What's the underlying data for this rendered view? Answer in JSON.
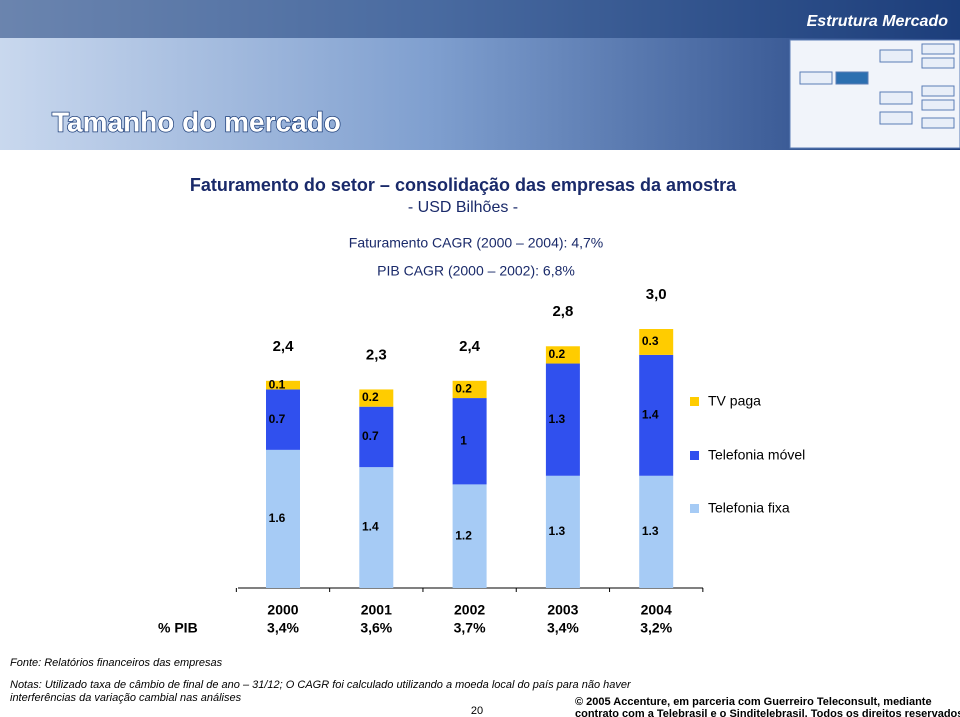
{
  "header": {
    "section": "Estrutura Mercado",
    "title": "Tamanho do mercado"
  },
  "chart_data": {
    "type": "stacked_bar",
    "title": "Faturamento do setor – consolidação das empresas da amostra",
    "subtitle": "- USD Bilhões -",
    "annotations": [
      "Faturamento CAGR (2000 – 2004): 4,7%",
      "PIB CAGR (2000 – 2002): 6,8%"
    ],
    "categories": [
      "2000",
      "2001",
      "2002",
      "2003",
      "2004"
    ],
    "series": [
      {
        "name": "Telefonia fixa",
        "color": "#a6cbf5",
        "values": [
          1.6,
          1.4,
          1.2,
          1.3,
          1.3
        ]
      },
      {
        "name": "Telefonia móvel",
        "color": "#3050ee",
        "values": [
          0.7,
          0.7,
          1.0,
          1.3,
          1.4
        ]
      },
      {
        "name": "TV paga",
        "color": "#ffcc00",
        "values": [
          0.1,
          0.2,
          0.2,
          0.2,
          0.3
        ]
      }
    ],
    "totals": {
      "values": [
        2.4,
        2.3,
        2.4,
        2.8,
        3.0
      ],
      "value_labels": [
        "2,4",
        "2,3",
        "2,4",
        "2,8",
        "3,0"
      ]
    },
    "ylim": [
      0,
      3.0
    ],
    "legend": "right",
    "pib": {
      "label": "% PIB",
      "values": [
        "3,4%",
        "3,6%",
        "3,7%",
        "3,4%",
        "3,2%"
      ]
    }
  },
  "footer": {
    "source": "Fonte: Relatórios financeiros das empresas",
    "notes": [
      "Notas: Utilizado taxa de câmbio de final de ano – 31/12; O CAGR foi calculado utilizando a moeda local do país para não haver",
      "interferências da variação cambial nas análises"
    ],
    "page": "20",
    "copyright": [
      "© 2005 Accenture, em parceria com Guerreiro Teleconsult, mediante",
      "contrato com a Telebrasil e o Sinditelebrasil. Todos os direitos reservados."
    ]
  }
}
